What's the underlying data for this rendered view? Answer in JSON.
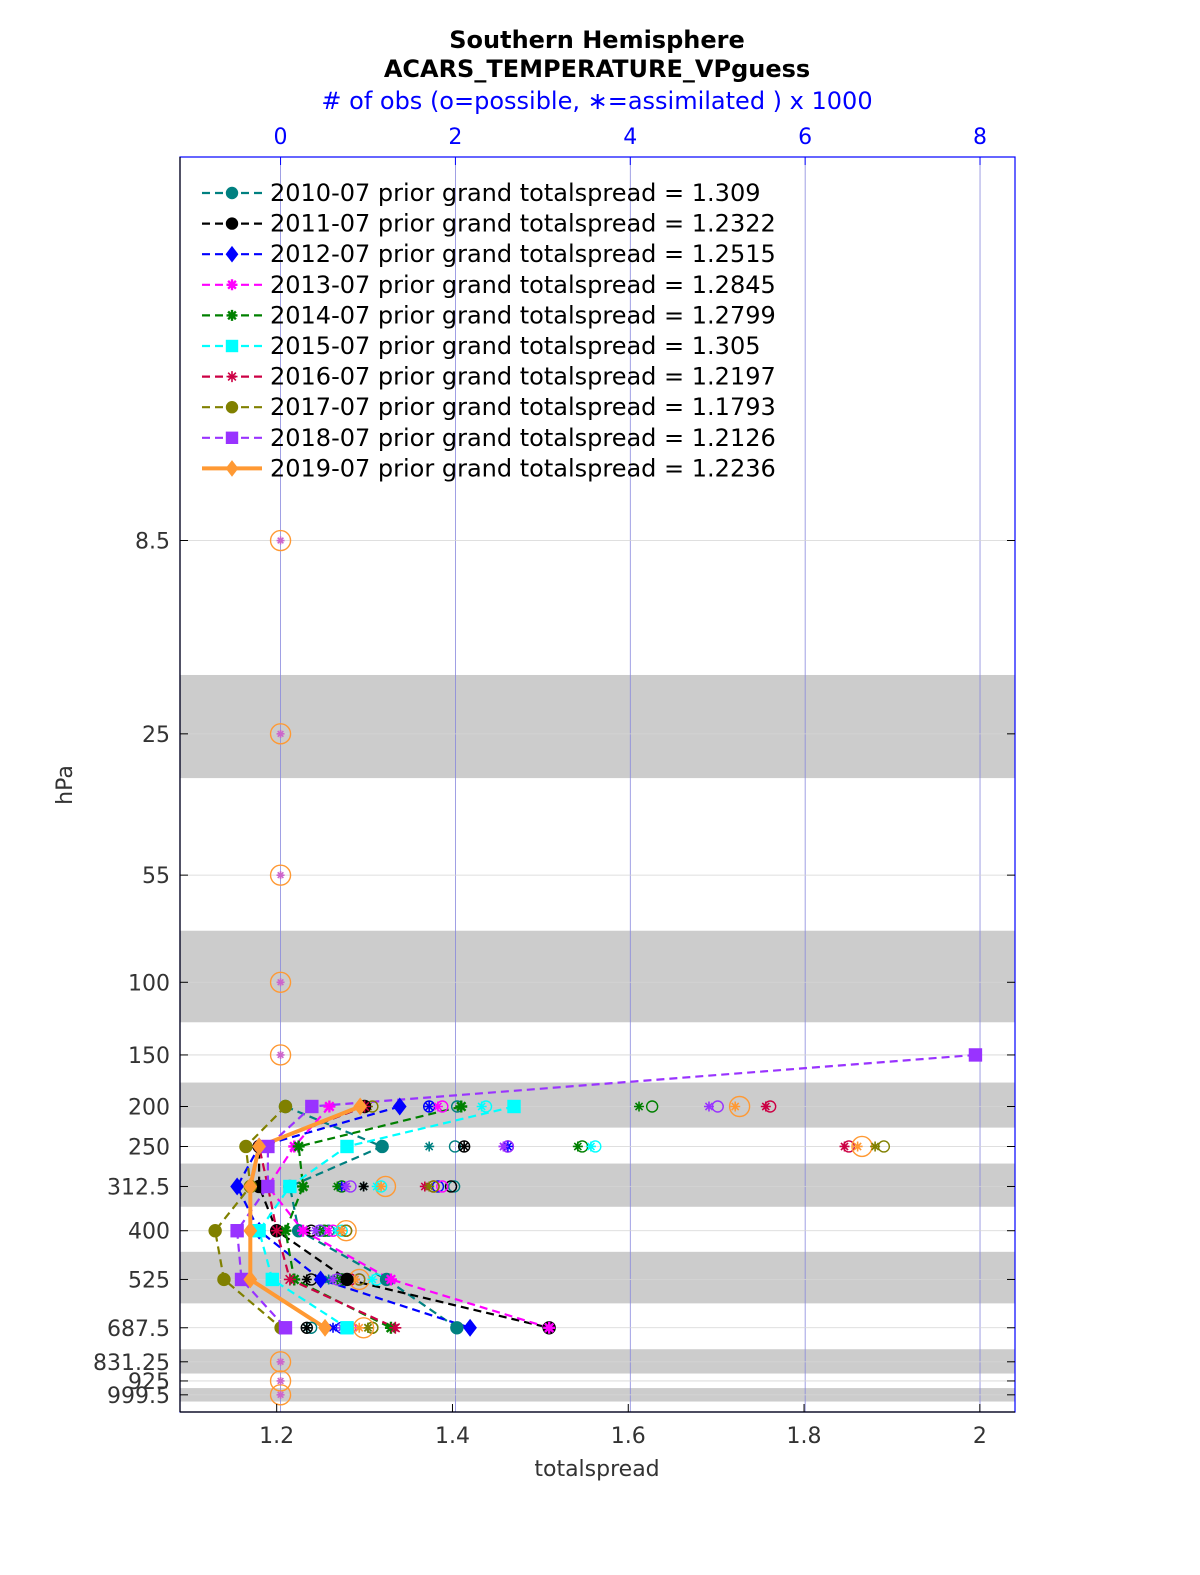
{
  "chart_data": {
    "type": "line",
    "title": "Southern Hemisphere",
    "subtitle": "ACARS_TEMPERATURE_VPguess",
    "top_axis_label": "# of obs (o=possible, ∗=assimilated ) x 1000",
    "xlabel": "totalspread",
    "ylabel": "hPa",
    "xlim": [
      1.09,
      2.04
    ],
    "top_xlim": [
      -1.15,
      8.4
    ],
    "x_ticks": [
      "1.2",
      "1.4",
      "1.6",
      "1.8",
      "2"
    ],
    "top_x_ticks": [
      "0",
      "2",
      "4",
      "6",
      "8"
    ],
    "y_scale": "log",
    "ylim": [
      1,
      1100
    ],
    "y_inverted": true,
    "levels": [
      8.5,
      25,
      55,
      100,
      150,
      200,
      250,
      312.5,
      400,
      525,
      687.5,
      831.25,
      925,
      999.5
    ],
    "level_labels": [
      "8.5",
      "25",
      "55",
      "100",
      "150",
      "200",
      "250",
      "312.5",
      "400",
      "525",
      "687.5",
      "831.25",
      "925",
      "999.5"
    ],
    "shaded_bands": [
      [
        18,
        32
      ],
      [
        75,
        125
      ],
      [
        175,
        225
      ],
      [
        275,
        350
      ],
      [
        450,
        600
      ],
      [
        775,
        887.5
      ],
      [
        962.5,
        1037.5
      ]
    ],
    "grid": "vertical",
    "legend_position": "top-left",
    "series": [
      {
        "name": "2010-07 prior grand totalspread = 1.309",
        "color": "#008080",
        "marker": "circle",
        "line": "dashed",
        "points": [
          [
            1.21,
            200
          ],
          [
            1.32,
            250
          ],
          [
            1.215,
            312.5
          ],
          [
            1.225,
            400
          ],
          [
            1.325,
            525
          ],
          [
            1.405,
            687.5
          ]
        ]
      },
      {
        "name": "2011-07 prior grand totalspread = 1.2322",
        "color": "#000000",
        "marker": "circle",
        "line": "dashed",
        "points": [
          [
            1.3,
            200
          ],
          [
            1.18,
            250
          ],
          [
            1.18,
            312.5
          ],
          [
            1.2,
            400
          ],
          [
            1.28,
            525
          ],
          [
            1.51,
            687.5
          ]
        ]
      },
      {
        "name": "2012-07 prior grand totalspread = 1.2515",
        "color": "#0000ff",
        "marker": "diamond",
        "line": "dashed",
        "points": [
          [
            1.34,
            200
          ],
          [
            1.18,
            250
          ],
          [
            1.155,
            312.5
          ],
          [
            1.18,
            400
          ],
          [
            1.25,
            525
          ],
          [
            1.42,
            687.5
          ]
        ]
      },
      {
        "name": "2013-07 prior grand totalspread = 1.2845",
        "color": "#ff00ff",
        "marker": "star",
        "line": "dashed",
        "points": [
          [
            1.26,
            200
          ],
          [
            1.22,
            250
          ],
          [
            1.19,
            312.5
          ],
          [
            1.23,
            400
          ],
          [
            1.33,
            525
          ],
          [
            1.51,
            687.5
          ]
        ]
      },
      {
        "name": "2014-07 prior grand totalspread = 1.2799",
        "color": "#008000",
        "marker": "star",
        "line": "dashed",
        "points": [
          [
            1.41,
            200
          ],
          [
            1.225,
            250
          ],
          [
            1.23,
            312.5
          ],
          [
            1.21,
            400
          ],
          [
            1.22,
            525
          ],
          [
            1.33,
            687.5
          ]
        ]
      },
      {
        "name": "2015-07 prior grand totalspread = 1.305",
        "color": "#00ffff",
        "marker": "square",
        "line": "dashed",
        "points": [
          [
            1.47,
            200
          ],
          [
            1.28,
            250
          ],
          [
            1.215,
            312.5
          ],
          [
            1.18,
            400
          ],
          [
            1.195,
            525
          ],
          [
            1.28,
            687.5
          ]
        ]
      },
      {
        "name": "2016-07 prior grand totalspread = 1.2197",
        "color": "#cc0044",
        "marker": "asterisk",
        "line": "dashed",
        "points": [
          [
            1.3,
            200
          ],
          [
            1.18,
            250
          ],
          [
            1.19,
            312.5
          ],
          [
            1.2,
            400
          ],
          [
            1.215,
            525
          ],
          [
            1.335,
            687.5
          ]
        ]
      },
      {
        "name": "2017-07 prior grand totalspread = 1.1793",
        "color": "#808000",
        "marker": "circle",
        "line": "dashed",
        "points": [
          [
            1.21,
            200
          ],
          [
            1.165,
            250
          ],
          [
            1.17,
            312.5
          ],
          [
            1.13,
            400
          ],
          [
            1.14,
            525
          ],
          [
            1.205,
            687.5
          ]
        ]
      },
      {
        "name": "2018-07 prior grand totalspread = 1.2126",
        "color": "#9933ff",
        "marker": "square",
        "line": "dashed",
        "points": [
          [
            1.995,
            150
          ],
          [
            1.24,
            200
          ],
          [
            1.19,
            250
          ],
          [
            1.19,
            312.5
          ],
          [
            1.155,
            400
          ],
          [
            1.16,
            525
          ],
          [
            1.21,
            687.5
          ]
        ]
      },
      {
        "name": "2019-07 prior grand totalspread = 1.2236",
        "color": "#ff9933",
        "marker": "diamond",
        "line": "solid",
        "points": [
          [
            1.295,
            200
          ],
          [
            1.18,
            250
          ],
          [
            1.17,
            312.5
          ],
          [
            1.17,
            400
          ],
          [
            1.17,
            525
          ],
          [
            1.255,
            687.5
          ]
        ]
      }
    ],
    "obs_counts": {
      "note_scale": "x 1000",
      "possible": [
        {
          "color": "#008080",
          "points": [
            [
              1.995,
              250
            ],
            [
              2.02,
              200
            ],
            [
              1.985,
              312.5
            ],
            [
              0.55,
              400
            ],
            [
              0.9,
              525
            ],
            [
              0.35,
              687.5
            ]
          ]
        },
        {
          "color": "#000000",
          "points": [
            [
              2.1,
              250
            ],
            [
              1.95,
              312.5
            ],
            [
              0.35,
              400
            ],
            [
              0.35,
              525
            ],
            [
              0.3,
              687.5
            ]
          ]
        },
        {
          "color": "#0000ff",
          "points": [
            [
              1.7,
              200
            ],
            [
              2.6,
              250
            ],
            [
              1.8,
              312.5
            ],
            [
              0.45,
              400
            ],
            [
              0.7,
              525
            ],
            [
              0.7,
              687.5
            ]
          ]
        },
        {
          "color": "#ff00ff",
          "points": [
            [
              1.85,
              200
            ],
            [
              2.6,
              250
            ],
            [
              1.85,
              312.5
            ],
            [
              0.6,
              400
            ],
            [
              0.9,
              525
            ],
            [
              0.8,
              687.5
            ]
          ]
        },
        {
          "color": "#008000",
          "points": [
            [
              4.25,
              200
            ],
            [
              3.45,
              250
            ],
            [
              0.7,
              312.5
            ],
            [
              0.5,
              400
            ],
            [
              0.7,
              525
            ],
            [
              1.05,
              687.5
            ]
          ]
        },
        {
          "color": "#00ffff",
          "points": [
            [
              2.35,
              200
            ],
            [
              3.6,
              250
            ],
            [
              1.15,
              312.5
            ],
            [
              0.7,
              400
            ],
            [
              1.1,
              525
            ],
            [
              0.75,
              687.5
            ]
          ]
        },
        {
          "color": "#cc0044",
          "points": [
            [
              5.6,
              200
            ],
            [
              6.5,
              250
            ],
            [
              1.75,
              312.5
            ],
            [
              0.75,
              400
            ],
            [
              0.8,
              525
            ],
            [
              0.75,
              687.5
            ]
          ]
        },
        {
          "color": "#808000",
          "points": [
            [
              1.05,
              200
            ],
            [
              6.9,
              250
            ],
            [
              1.75,
              312.5
            ],
            [
              0.75,
              400
            ],
            [
              0.9,
              525
            ],
            [
              1.05,
              687.5
            ]
          ]
        },
        {
          "color": "#9933ff",
          "points": [
            [
              5.0,
              200
            ],
            [
              2.6,
              250
            ],
            [
              0.8,
              312.5
            ],
            [
              0.45,
              400
            ],
            [
              0.65,
              525
            ],
            [
              0.75,
              687.5
            ]
          ]
        },
        {
          "color": "#ff9933",
          "points": [
            [
              0,
              8.5
            ],
            [
              0,
              25
            ],
            [
              0,
              55
            ],
            [
              0,
              100
            ],
            [
              0,
              150
            ],
            [
              5.25,
              200
            ],
            [
              6.65,
              250
            ],
            [
              1.2,
              312.5
            ],
            [
              0.75,
              400
            ],
            [
              0.9,
              525
            ],
            [
              0.95,
              687.5
            ],
            [
              0,
              831.25
            ],
            [
              0,
              925
            ],
            [
              0,
              999.5
            ]
          ]
        }
      ],
      "assimilated": [
        {
          "color": "#008080",
          "points": [
            [
              1.7,
              250
            ],
            [
              0.95,
              312.5
            ],
            [
              0.3,
              400
            ],
            [
              0.55,
              525
            ],
            [
              0.3,
              687.5
            ]
          ]
        },
        {
          "color": "#000000",
          "points": [
            [
              2.1,
              250
            ],
            [
              0.95,
              312.5
            ],
            [
              0.3,
              400
            ],
            [
              0.3,
              525
            ],
            [
              0.3,
              687.5
            ]
          ]
        },
        {
          "color": "#0000ff",
          "points": [
            [
              1.7,
              200
            ],
            [
              2.6,
              250
            ],
            [
              0.7,
              312.5
            ],
            [
              0.45,
              400
            ],
            [
              0.65,
              525
            ],
            [
              0.6,
              687.5
            ]
          ]
        },
        {
          "color": "#ff00ff",
          "points": [
            [
              1.8,
              200
            ],
            [
              2.55,
              250
            ],
            [
              0.75,
              312.5
            ],
            [
              0.55,
              400
            ],
            [
              0.85,
              525
            ],
            [
              0.75,
              687.5
            ]
          ]
        },
        {
          "color": "#008000",
          "points": [
            [
              4.1,
              200
            ],
            [
              3.4,
              250
            ],
            [
              0.65,
              312.5
            ],
            [
              0.45,
              400
            ],
            [
              0.65,
              525
            ],
            [
              1.0,
              687.5
            ]
          ]
        },
        {
          "color": "#00ffff",
          "points": [
            [
              2.3,
              200
            ],
            [
              3.55,
              250
            ],
            [
              1.1,
              312.5
            ],
            [
              0.65,
              400
            ],
            [
              1.05,
              525
            ],
            [
              0.7,
              687.5
            ]
          ]
        },
        {
          "color": "#cc0044",
          "points": [
            [
              5.55,
              200
            ],
            [
              6.45,
              250
            ],
            [
              1.65,
              312.5
            ],
            [
              0.7,
              400
            ],
            [
              0.75,
              525
            ],
            [
              1.3,
              687.5
            ]
          ]
        },
        {
          "color": "#808000",
          "points": [
            [
              1.0,
              200
            ],
            [
              6.8,
              250
            ],
            [
              1.7,
              312.5
            ],
            [
              0.7,
              400
            ],
            [
              0.85,
              525
            ],
            [
              1.0,
              687.5
            ]
          ]
        },
        {
          "color": "#9933ff",
          "points": [
            [
              4.9,
              200
            ],
            [
              2.55,
              250
            ],
            [
              0.75,
              312.5
            ],
            [
              0.4,
              400
            ],
            [
              0.6,
              525
            ],
            [
              0.7,
              687.5
            ]
          ]
        },
        {
          "color": "#ff9933",
          "points": [
            [
              5.2,
              200
            ],
            [
              6.6,
              250
            ],
            [
              1.15,
              312.5
            ],
            [
              0.7,
              400
            ],
            [
              0.85,
              525
            ],
            [
              0.9,
              687.5
            ]
          ]
        }
      ]
    }
  }
}
